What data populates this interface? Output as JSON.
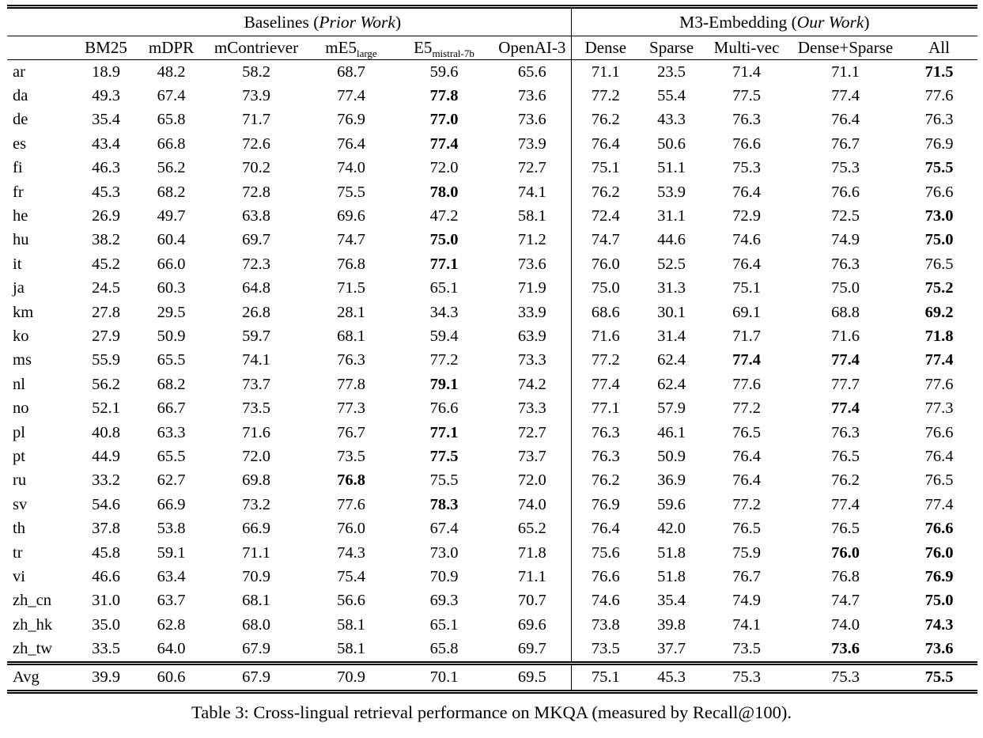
{
  "table": {
    "groups": [
      {
        "prefix": "Baselines (",
        "italic": "Prior Work",
        "suffix": ")"
      },
      {
        "prefix": "M3-Embedding (",
        "italic": "Our Work",
        "suffix": ")"
      }
    ],
    "columns": [
      {
        "label": "BM25"
      },
      {
        "label": "mDPR"
      },
      {
        "label": "mContriever"
      },
      {
        "base": "mE5",
        "sub": "large"
      },
      {
        "base": "E5",
        "sub": "mistral-7b"
      },
      {
        "label": "OpenAI-3"
      },
      {
        "label": "Dense"
      },
      {
        "label": "Sparse"
      },
      {
        "label": "Multi-vec"
      },
      {
        "label": "Dense+Sparse"
      },
      {
        "label": "All"
      }
    ],
    "rows": [
      {
        "lang": "ar",
        "values": [
          "18.9",
          "48.2",
          "58.2",
          "68.7",
          "59.6",
          "65.6",
          "71.1",
          "23.5",
          "71.4",
          "71.1",
          "71.5"
        ],
        "bold": [
          10
        ]
      },
      {
        "lang": "da",
        "values": [
          "49.3",
          "67.4",
          "73.9",
          "77.4",
          "77.8",
          "73.6",
          "77.2",
          "55.4",
          "77.5",
          "77.4",
          "77.6"
        ],
        "bold": [
          4
        ]
      },
      {
        "lang": "de",
        "values": [
          "35.4",
          "65.8",
          "71.7",
          "76.9",
          "77.0",
          "73.6",
          "76.2",
          "43.3",
          "76.3",
          "76.4",
          "76.3"
        ],
        "bold": [
          4
        ]
      },
      {
        "lang": "es",
        "values": [
          "43.4",
          "66.8",
          "72.6",
          "76.4",
          "77.4",
          "73.9",
          "76.4",
          "50.6",
          "76.6",
          "76.7",
          "76.9"
        ],
        "bold": [
          4
        ]
      },
      {
        "lang": "fi",
        "values": [
          "46.3",
          "56.2",
          "70.2",
          "74.0",
          "72.0",
          "72.7",
          "75.1",
          "51.1",
          "75.3",
          "75.3",
          "75.5"
        ],
        "bold": [
          10
        ]
      },
      {
        "lang": "fr",
        "values": [
          "45.3",
          "68.2",
          "72.8",
          "75.5",
          "78.0",
          "74.1",
          "76.2",
          "53.9",
          "76.4",
          "76.6",
          "76.6"
        ],
        "bold": [
          4
        ]
      },
      {
        "lang": "he",
        "values": [
          "26.9",
          "49.7",
          "63.8",
          "69.6",
          "47.2",
          "58.1",
          "72.4",
          "31.1",
          "72.9",
          "72.5",
          "73.0"
        ],
        "bold": [
          10
        ]
      },
      {
        "lang": "hu",
        "values": [
          "38.2",
          "60.4",
          "69.7",
          "74.7",
          "75.0",
          "71.2",
          "74.7",
          "44.6",
          "74.6",
          "74.9",
          "75.0"
        ],
        "bold": [
          4,
          10
        ]
      },
      {
        "lang": "it",
        "values": [
          "45.2",
          "66.0",
          "72.3",
          "76.8",
          "77.1",
          "73.6",
          "76.0",
          "52.5",
          "76.4",
          "76.3",
          "76.5"
        ],
        "bold": [
          4
        ]
      },
      {
        "lang": "ja",
        "values": [
          "24.5",
          "60.3",
          "64.8",
          "71.5",
          "65.1",
          "71.9",
          "75.0",
          "31.3",
          "75.1",
          "75.0",
          "75.2"
        ],
        "bold": [
          10
        ]
      },
      {
        "lang": "km",
        "values": [
          "27.8",
          "29.5",
          "26.8",
          "28.1",
          "34.3",
          "33.9",
          "68.6",
          "30.1",
          "69.1",
          "68.8",
          "69.2"
        ],
        "bold": [
          10
        ]
      },
      {
        "lang": "ko",
        "values": [
          "27.9",
          "50.9",
          "59.7",
          "68.1",
          "59.4",
          "63.9",
          "71.6",
          "31.4",
          "71.7",
          "71.6",
          "71.8"
        ],
        "bold": [
          10
        ]
      },
      {
        "lang": "ms",
        "values": [
          "55.9",
          "65.5",
          "74.1",
          "76.3",
          "77.2",
          "73.3",
          "77.2",
          "62.4",
          "77.4",
          "77.4",
          "77.4"
        ],
        "bold": [
          8,
          9,
          10
        ]
      },
      {
        "lang": "nl",
        "values": [
          "56.2",
          "68.2",
          "73.7",
          "77.8",
          "79.1",
          "74.2",
          "77.4",
          "62.4",
          "77.6",
          "77.7",
          "77.6"
        ],
        "bold": [
          4
        ]
      },
      {
        "lang": "no",
        "values": [
          "52.1",
          "66.7",
          "73.5",
          "77.3",
          "76.6",
          "73.3",
          "77.1",
          "57.9",
          "77.2",
          "77.4",
          "77.3"
        ],
        "bold": [
          9
        ]
      },
      {
        "lang": "pl",
        "values": [
          "40.8",
          "63.3",
          "71.6",
          "76.7",
          "77.1",
          "72.7",
          "76.3",
          "46.1",
          "76.5",
          "76.3",
          "76.6"
        ],
        "bold": [
          4
        ]
      },
      {
        "lang": "pt",
        "values": [
          "44.9",
          "65.5",
          "72.0",
          "73.5",
          "77.5",
          "73.7",
          "76.3",
          "50.9",
          "76.4",
          "76.5",
          "76.4"
        ],
        "bold": [
          4
        ]
      },
      {
        "lang": "ru",
        "values": [
          "33.2",
          "62.7",
          "69.8",
          "76.8",
          "75.5",
          "72.0",
          "76.2",
          "36.9",
          "76.4",
          "76.2",
          "76.5"
        ],
        "bold": [
          3
        ]
      },
      {
        "lang": "sv",
        "values": [
          "54.6",
          "66.9",
          "73.2",
          "77.6",
          "78.3",
          "74.0",
          "76.9",
          "59.6",
          "77.2",
          "77.4",
          "77.4"
        ],
        "bold": [
          4
        ]
      },
      {
        "lang": "th",
        "values": [
          "37.8",
          "53.8",
          "66.9",
          "76.0",
          "67.4",
          "65.2",
          "76.4",
          "42.0",
          "76.5",
          "76.5",
          "76.6"
        ],
        "bold": [
          10
        ]
      },
      {
        "lang": "tr",
        "values": [
          "45.8",
          "59.1",
          "71.1",
          "74.3",
          "73.0",
          "71.8",
          "75.6",
          "51.8",
          "75.9",
          "76.0",
          "76.0"
        ],
        "bold": [
          9,
          10
        ]
      },
      {
        "lang": "vi",
        "values": [
          "46.6",
          "63.4",
          "70.9",
          "75.4",
          "70.9",
          "71.1",
          "76.6",
          "51.8",
          "76.7",
          "76.8",
          "76.9"
        ],
        "bold": [
          10
        ]
      },
      {
        "lang": "zh_cn",
        "values": [
          "31.0",
          "63.7",
          "68.1",
          "56.6",
          "69.3",
          "70.7",
          "74.6",
          "35.4",
          "74.9",
          "74.7",
          "75.0"
        ],
        "bold": [
          10
        ]
      },
      {
        "lang": "zh_hk",
        "values": [
          "35.0",
          "62.8",
          "68.0",
          "58.1",
          "65.1",
          "69.6",
          "73.8",
          "39.8",
          "74.1",
          "74.0",
          "74.3"
        ],
        "bold": [
          10
        ]
      },
      {
        "lang": "zh_tw",
        "values": [
          "33.5",
          "64.0",
          "67.9",
          "58.1",
          "65.8",
          "69.7",
          "73.5",
          "37.7",
          "73.5",
          "73.6",
          "73.6"
        ],
        "bold": [
          9,
          10
        ]
      }
    ],
    "avg_row": {
      "lang": "Avg",
      "values": [
        "39.9",
        "60.6",
        "67.9",
        "70.9",
        "70.1",
        "69.5",
        "75.1",
        "45.3",
        "75.3",
        "75.3",
        "75.5"
      ],
      "bold": [
        10
      ]
    }
  },
  "caption": "Table 3: Cross-lingual retrieval performance on MKQA (measured by Recall@100)."
}
